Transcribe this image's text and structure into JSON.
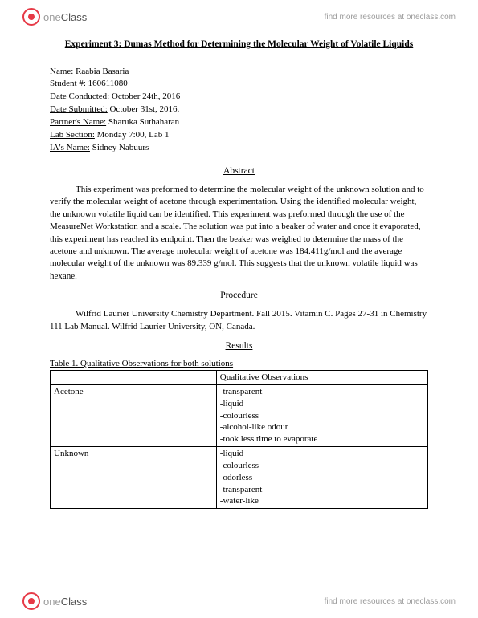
{
  "header": {
    "logo_left": "one",
    "logo_right": "Class",
    "link": "find more resources at oneclass.com"
  },
  "title": "Experiment 3: Dumas Method for Determining the Molecular Weight of Volatile Liquids",
  "meta": {
    "name_label": "Name:",
    "name": " Raabia Basaria",
    "student_label": "Student #:",
    "student": " 160611080",
    "conducted_label": "Date Conducted:",
    "conducted": " October 24th, 2016",
    "submitted_label": "Date Submitted:",
    "submitted": " October 31st, 2016.",
    "partner_label": "Partner's Name:",
    "partner": " Sharuka Suthaharan",
    "section_label": "Lab Section:",
    "section": " Monday 7:00, Lab 1",
    "ia_label": "IA's Name:",
    "ia": " Sidney Nabuurs"
  },
  "abstract_head": "Abstract",
  "abstract_text": "This experiment was preformed to determine the molecular weight of the unknown solution and to verify the molecular weight of acetone through experimentation. Using the identified molecular weight, the unknown volatile liquid can be identified. This experiment was preformed through the use of the MeasureNet Workstation and a scale. The solution was put into a beaker of water and once it evaporated, this experiment has reached its endpoint. Then the beaker was weighed to determine the mass of the acetone and unknown. The average molecular weight of acetone was 184.411g/mol and the average molecular weight of the unknown was 89.339 g/mol. This suggests that the unknown volatile liquid was hexane.",
  "procedure_head": "Procedure",
  "procedure_text": "Wilfrid Laurier University Chemistry Department. Fall 2015. Vitamin C. Pages 27-31 in Chemistry 111 Lab Manual. Wilfrid Laurier University, ON, Canada.",
  "results_head": "Results",
  "table_caption": "Table 1. Qualitative Observations for both solutions",
  "table": {
    "header_blank": "",
    "header_obs": "Qualitative Observations",
    "rows": [
      {
        "label": "Acetone",
        "obs": "-transparent\n-liquid\n-colourless\n-alcohol-like odour\n-took less time to evaporate"
      },
      {
        "label": "Unknown",
        "obs": "-liquid\n-colourless\n-odorless\n-transparent\n-water-like"
      }
    ]
  }
}
